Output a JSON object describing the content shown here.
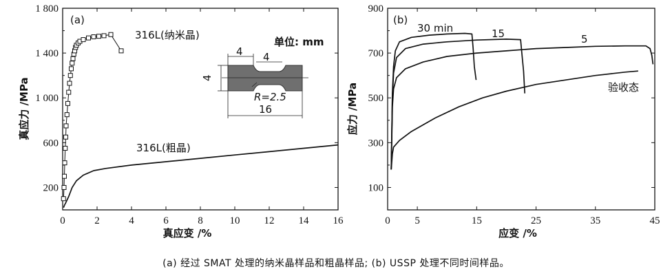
{
  "chart_data": [
    {
      "panel_label": "(a)",
      "type": "line",
      "xlabel": "真应变 /%",
      "ylabel": "真应力 /MPa",
      "xlim": [
        0,
        16
      ],
      "ylim": [
        0,
        1800
      ],
      "xticks": [
        "0",
        "2",
        "4",
        "6",
        "8",
        "10",
        "12",
        "14",
        "16"
      ],
      "yticks": [
        "200",
        "600",
        "1 000",
        "1 400",
        "1 800"
      ],
      "ytick_values": [
        200,
        600,
        1000,
        1400,
        1800
      ],
      "series": [
        {
          "name": "316L(纳米晶)",
          "marker": "square",
          "points": [
            [
              0.05,
              100
            ],
            [
              0.08,
              200
            ],
            [
              0.1,
              300
            ],
            [
              0.12,
              420
            ],
            [
              0.15,
              550
            ],
            [
              0.18,
              650
            ],
            [
              0.2,
              750
            ],
            [
              0.25,
              850
            ],
            [
              0.3,
              950
            ],
            [
              0.35,
              1050
            ],
            [
              0.4,
              1130
            ],
            [
              0.45,
              1200
            ],
            [
              0.5,
              1260
            ],
            [
              0.55,
              1310
            ],
            [
              0.6,
              1350
            ],
            [
              0.65,
              1390
            ],
            [
              0.7,
              1420
            ],
            [
              0.75,
              1450
            ],
            [
              0.8,
              1470
            ],
            [
              0.9,
              1490
            ],
            [
              1.0,
              1505
            ],
            [
              1.2,
              1520
            ],
            [
              1.5,
              1535
            ],
            [
              1.8,
              1545
            ],
            [
              2.1,
              1550
            ],
            [
              2.4,
              1555
            ],
            [
              2.8,
              1565
            ],
            [
              3.4,
              1420
            ]
          ]
        },
        {
          "name": "316L(粗晶)",
          "points": [
            [
              0.05,
              20
            ],
            [
              0.1,
              40
            ],
            [
              0.2,
              70
            ],
            [
              0.35,
              120
            ],
            [
              0.55,
              200
            ],
            [
              0.8,
              260
            ],
            [
              1.2,
              310
            ],
            [
              1.8,
              350
            ],
            [
              2.5,
              370
            ],
            [
              4,
              400
            ],
            [
              6,
              430
            ],
            [
              8,
              460
            ],
            [
              10,
              490
            ],
            [
              12,
              520
            ],
            [
              14,
              550
            ],
            [
              16,
              580
            ]
          ]
        }
      ],
      "inset": {
        "unit_label": "单位: mm",
        "dim_left": "4",
        "dim_top": "4",
        "dim_side": "4",
        "radius": "R=2.5",
        "length": "16"
      }
    },
    {
      "panel_label": "(b)",
      "type": "line",
      "xlabel": "应变 /%",
      "ylabel": "应力 /MPa",
      "xlim": [
        0,
        45
      ],
      "ylim": [
        0,
        900
      ],
      "xticks": [
        "0",
        "5",
        "15",
        "25",
        "35",
        "45"
      ],
      "xtick_values": [
        0,
        5,
        15,
        25,
        35,
        45
      ],
      "yticks": [
        "100",
        "300",
        "500",
        "700",
        "900"
      ],
      "ytick_values": [
        100,
        300,
        500,
        700,
        900
      ],
      "series": [
        {
          "name": "30 min",
          "points": [
            [
              0.6,
              180
            ],
            [
              0.8,
              520
            ],
            [
              1.0,
              640
            ],
            [
              1.3,
              710
            ],
            [
              2,
              750
            ],
            [
              4,
              770
            ],
            [
              7,
              780
            ],
            [
              10,
              785
            ],
            [
              13,
              788
            ],
            [
              14.2,
              785
            ],
            [
              14.4,
              720
            ],
            [
              14.6,
              640
            ],
            [
              14.9,
              580
            ]
          ]
        },
        {
          "name": "15",
          "points": [
            [
              0.6,
              180
            ],
            [
              0.8,
              500
            ],
            [
              1.0,
              610
            ],
            [
              1.5,
              680
            ],
            [
              3,
              720
            ],
            [
              6,
              740
            ],
            [
              10,
              750
            ],
            [
              15,
              758
            ],
            [
              20,
              762
            ],
            [
              22.4,
              760
            ],
            [
              22.6,
              700
            ],
            [
              22.9,
              620
            ],
            [
              23.1,
              520
            ]
          ]
        },
        {
          "name": "5",
          "points": [
            [
              0.6,
              180
            ],
            [
              0.8,
              460
            ],
            [
              1.0,
              540
            ],
            [
              1.5,
              590
            ],
            [
              3,
              630
            ],
            [
              6,
              660
            ],
            [
              10,
              685
            ],
            [
              15,
              700
            ],
            [
              20,
              710
            ],
            [
              25,
              720
            ],
            [
              30,
              725
            ],
            [
              35,
              730
            ],
            [
              40,
              732
            ],
            [
              43.5,
              732
            ],
            [
              44.2,
              720
            ],
            [
              44.5,
              690
            ],
            [
              44.7,
              650
            ]
          ]
        },
        {
          "name": "验收态",
          "points": [
            [
              0.6,
              180
            ],
            [
              0.8,
              250
            ],
            [
              1,
              280
            ],
            [
              2,
              310
            ],
            [
              4,
              350
            ],
            [
              8,
              410
            ],
            [
              12,
              460
            ],
            [
              16,
              500
            ],
            [
              20,
              530
            ],
            [
              25,
              560
            ],
            [
              30,
              580
            ],
            [
              35,
              600
            ],
            [
              40,
              615
            ],
            [
              42.2,
              620
            ]
          ]
        }
      ]
    }
  ],
  "caption": "(a) 经过 SMAT 处理的纳米晶样品和粗晶样品;  (b) USSP 处理不同时间样品。"
}
